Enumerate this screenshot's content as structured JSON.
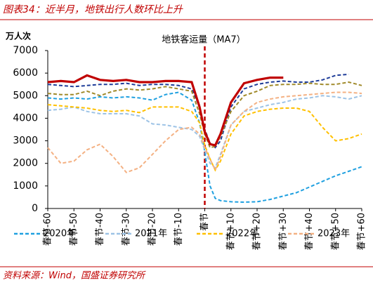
{
  "chart_data": {
    "type": "line",
    "page_title": "图表34：近半月，地铁出行人数环比上升",
    "title": "地铁客运量（MA7）",
    "y_label": "万人次",
    "source": "资料来源：Wind，国盛证券研究所",
    "x": [
      -60,
      -55,
      -50,
      -45,
      -40,
      -35,
      -30,
      -25,
      -20,
      -15,
      -10,
      -5,
      -2,
      0,
      2,
      4,
      6,
      10,
      15,
      20,
      25,
      30,
      35,
      40,
      45,
      50,
      55,
      60
    ],
    "xlim": [
      -60,
      60
    ],
    "xticks": [
      {
        "value": -60,
        "label": "春节-60"
      },
      {
        "value": -50,
        "label": "春节-50"
      },
      {
        "value": -40,
        "label": "春节-40"
      },
      {
        "value": -30,
        "label": "春节-30"
      },
      {
        "value": -20,
        "label": "春节-20"
      },
      {
        "value": -10,
        "label": "春节-10"
      },
      {
        "value": 0,
        "label": "春节"
      },
      {
        "value": 10,
        "label": "春节+10"
      },
      {
        "value": 20,
        "label": "春节+20"
      },
      {
        "value": 30,
        "label": "春节+30"
      },
      {
        "value": 40,
        "label": "春节+40"
      },
      {
        "value": 50,
        "label": "春节+50"
      },
      {
        "value": 60,
        "label": "春节+60"
      }
    ],
    "ylim": [
      0,
      7000
    ],
    "yticks": [
      0,
      1000,
      2000,
      3000,
      4000,
      5000,
      6000,
      7000
    ],
    "vline_x": 0,
    "vline_color": "#c00000",
    "series": [
      {
        "color": "#1f3d99",
        "dash": true,
        "values": [
          5500,
          5450,
          5400,
          5450,
          5500,
          5500,
          5550,
          5450,
          5500,
          5500,
          5450,
          5300,
          4500,
          3500,
          2900,
          2700,
          3000,
          4500,
          5300,
          5500,
          5600,
          5650,
          5600,
          5600,
          5700,
          5900,
          5950,
          null
        ]
      },
      {
        "color": "#a08a2a",
        "dash": true,
        "values": [
          5100,
          5050,
          5050,
          5200,
          5000,
          5200,
          5300,
          5250,
          5300,
          5400,
          5300,
          5200,
          4200,
          3300,
          2700,
          2750,
          3200,
          4300,
          5000,
          5200,
          5450,
          5500,
          5500,
          5550,
          5500,
          5500,
          5600,
          5450
        ]
      },
      {
        "name": "2020年",
        "color": "#1fa0e0",
        "dash": true,
        "values": [
          4900,
          4850,
          4900,
          4850,
          4950,
          4900,
          4950,
          4900,
          4800,
          5050,
          5150,
          4800,
          3800,
          2500,
          1000,
          450,
          350,
          300,
          280,
          300,
          400,
          550,
          700,
          950,
          1200,
          1450,
          1650,
          1850
        ]
      },
      {
        "name": "2021年",
        "color": "#9dc3e6",
        "dash": true,
        "values": [
          4350,
          4400,
          4500,
          4300,
          4200,
          4200,
          4200,
          4100,
          3750,
          3700,
          3600,
          3500,
          3200,
          2600,
          2000,
          1800,
          2400,
          3700,
          4300,
          4450,
          4600,
          4700,
          4850,
          4900,
          5000,
          4950,
          4850,
          5000
        ]
      },
      {
        "name": "2022年",
        "color": "#ffc000",
        "dash": true,
        "values": [
          4600,
          4550,
          4500,
          4450,
          4350,
          4300,
          4350,
          4250,
          4500,
          4500,
          4500,
          4300,
          3800,
          2800,
          2200,
          1700,
          2100,
          3300,
          4100,
          4300,
          4400,
          4450,
          4450,
          4300,
          3600,
          3000,
          3100,
          3300
        ]
      },
      {
        "name": "2023年",
        "color": "#f4b183",
        "dash": true,
        "values": [
          2700,
          2000,
          2100,
          2600,
          2850,
          2300,
          1600,
          1800,
          2400,
          3000,
          3500,
          3600,
          3300,
          2700,
          2200,
          1700,
          2300,
          3700,
          4300,
          4700,
          4850,
          4950,
          5000,
          5050,
          5100,
          5150,
          5150,
          5100
        ]
      },
      {
        "color": "#c00000",
        "dash": false,
        "values": [
          5600,
          5650,
          5600,
          5900,
          5700,
          5650,
          5700,
          5600,
          5600,
          5650,
          5650,
          5600,
          4500,
          3400,
          2850,
          2800,
          3300,
          4700,
          5550,
          5700,
          5800,
          5800,
          null,
          null,
          null,
          null,
          null,
          null
        ]
      }
    ]
  }
}
